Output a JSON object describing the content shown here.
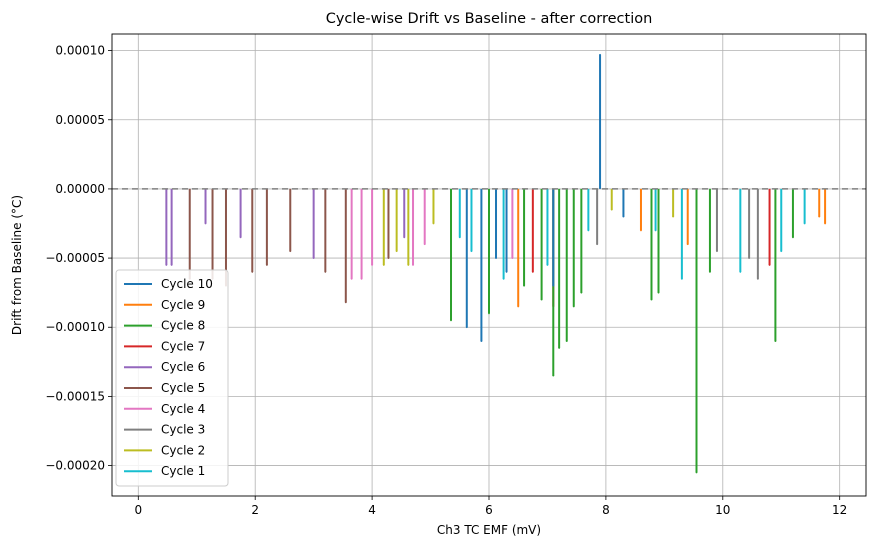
{
  "chart_data": {
    "type": "line",
    "title": "Cycle-wise Drift vs Baseline - after correction",
    "xlabel": "Ch3 TC EMF (mV)",
    "ylabel": "Drift from Baseline (°C)",
    "xlim": [
      -0.45,
      12.45
    ],
    "ylim": [
      -0.000222,
      0.000112
    ],
    "xticks": [
      0,
      2,
      4,
      6,
      8,
      10,
      12
    ],
    "yticks": [
      0.0001,
      5e-05,
      0.0,
      -5e-05,
      -0.0001,
      -0.00015,
      -0.0002
    ],
    "xtick_labels": [
      "0",
      "2",
      "4",
      "6",
      "8",
      "10",
      "12"
    ],
    "ytick_labels": [
      "0.00010",
      "0.00005",
      "0.00000",
      "−0.00005",
      "−0.00010",
      "−0.00015",
      "−0.00020"
    ],
    "grid": true,
    "legend_position": "lower-left",
    "baseline": 0.0,
    "series": [
      {
        "name": "Cycle 10",
        "color": "#1f77b4",
        "points": [
          [
            5.62,
            -0.0001
          ],
          [
            5.87,
            -0.00011
          ],
          [
            6.12,
            -5e-05
          ],
          [
            6.3,
            -6e-05
          ],
          [
            7.1,
            -7e-05
          ],
          [
            7.9,
            9.7e-05
          ],
          [
            8.3,
            -2e-05
          ]
        ]
      },
      {
        "name": "Cycle 9",
        "color": "#ff7f0e",
        "points": [
          [
            6.5,
            -8.5e-05
          ],
          [
            8.6,
            -3e-05
          ],
          [
            9.4,
            -4e-05
          ],
          [
            11.65,
            -2e-05
          ],
          [
            11.75,
            -2.5e-05
          ]
        ]
      },
      {
        "name": "Cycle 8",
        "color": "#2ca02c",
        "points": [
          [
            5.35,
            -9.5e-05
          ],
          [
            6.0,
            -9e-05
          ],
          [
            6.6,
            -7e-05
          ],
          [
            6.9,
            -8e-05
          ],
          [
            7.1,
            -0.000135
          ],
          [
            7.2,
            -0.000115
          ],
          [
            7.33,
            -0.00011
          ],
          [
            7.45,
            -8.5e-05
          ],
          [
            7.58,
            -7.5e-05
          ],
          [
            8.78,
            -8e-05
          ],
          [
            8.9,
            -7.5e-05
          ],
          [
            9.55,
            -0.000205
          ],
          [
            9.78,
            -6e-05
          ],
          [
            10.9,
            -0.00011
          ],
          [
            11.2,
            -3.5e-05
          ]
        ]
      },
      {
        "name": "Cycle 7",
        "color": "#d62728",
        "points": [
          [
            6.75,
            -6e-05
          ],
          [
            7.1,
            -8.5e-05
          ],
          [
            9.55,
            -8e-05
          ],
          [
            10.8,
            -5.5e-05
          ]
        ]
      },
      {
        "name": "Cycle 6",
        "color": "#9467bd",
        "points": [
          [
            0.48,
            -5.5e-05
          ],
          [
            0.57,
            -5.5e-05
          ],
          [
            1.15,
            -2.5e-05
          ],
          [
            1.75,
            -3.5e-05
          ],
          [
            3.0,
            -5e-05
          ],
          [
            4.55,
            -3.5e-05
          ]
        ]
      },
      {
        "name": "Cycle 5",
        "color": "#8c564b",
        "points": [
          [
            0.88,
            -6.5e-05
          ],
          [
            1.27,
            -6.5e-05
          ],
          [
            1.5,
            -7e-05
          ],
          [
            1.95,
            -6e-05
          ],
          [
            2.2,
            -5.5e-05
          ],
          [
            2.6,
            -4.5e-05
          ],
          [
            3.2,
            -6e-05
          ],
          [
            3.55,
            -8.2e-05
          ],
          [
            4.28,
            -5e-05
          ]
        ]
      },
      {
        "name": "Cycle 4",
        "color": "#e377c2",
        "points": [
          [
            3.65,
            -6.5e-05
          ],
          [
            3.82,
            -6.5e-05
          ],
          [
            4.0,
            -5.5e-05
          ],
          [
            4.7,
            -5.5e-05
          ],
          [
            4.9,
            -4e-05
          ],
          [
            6.4,
            -5e-05
          ]
        ]
      },
      {
        "name": "Cycle 3",
        "color": "#7f7f7f",
        "points": [
          [
            7.85,
            -4e-05
          ],
          [
            9.9,
            -4.5e-05
          ],
          [
            10.45,
            -5e-05
          ],
          [
            10.6,
            -6.5e-05
          ]
        ]
      },
      {
        "name": "Cycle 2",
        "color": "#bcbd22",
        "points": [
          [
            4.2,
            -5.5e-05
          ],
          [
            4.42,
            -4.5e-05
          ],
          [
            4.62,
            -5.5e-05
          ],
          [
            5.05,
            -2.5e-05
          ],
          [
            8.1,
            -1.5e-05
          ],
          [
            9.15,
            -2e-05
          ]
        ]
      },
      {
        "name": "Cycle 1",
        "color": "#17becf",
        "points": [
          [
            5.5,
            -3.5e-05
          ],
          [
            5.7,
            -4.5e-05
          ],
          [
            6.25,
            -6.5e-05
          ],
          [
            7.0,
            -5.5e-05
          ],
          [
            7.7,
            -3e-05
          ],
          [
            8.85,
            -3e-05
          ],
          [
            9.3,
            -6.5e-05
          ],
          [
            10.3,
            -6e-05
          ],
          [
            11.0,
            -4.5e-05
          ],
          [
            11.4,
            -2.5e-05
          ]
        ]
      }
    ]
  }
}
